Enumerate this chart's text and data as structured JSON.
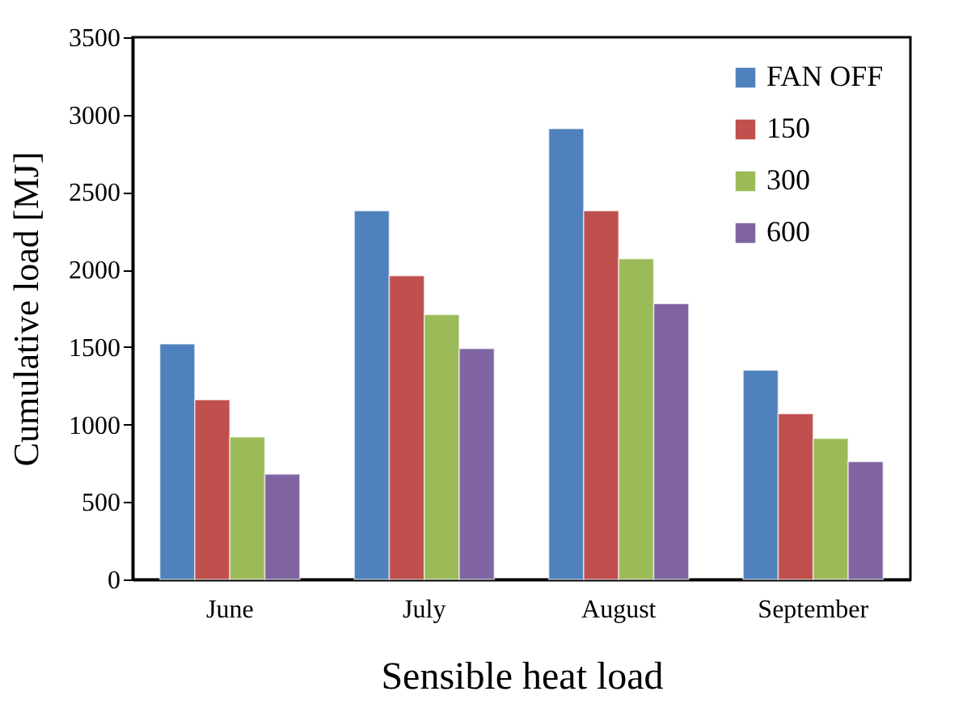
{
  "chart_data": {
    "type": "bar",
    "xlabel": "Sensible heat load",
    "ylabel": "Cumulative load [MJ]",
    "categories": [
      "June",
      "July",
      "August",
      "September"
    ],
    "series": [
      {
        "name": "FAN OFF",
        "color": "#4f81bd",
        "values": [
          1520,
          2380,
          2910,
          1350
        ]
      },
      {
        "name": "150",
        "color": "#c0504d",
        "values": [
          1160,
          1960,
          2380,
          1070
        ]
      },
      {
        "name": "300",
        "color": "#9bbb59",
        "values": [
          920,
          1710,
          2070,
          910
        ]
      },
      {
        "name": "600",
        "color": "#8064a2",
        "values": [
          680,
          1490,
          1780,
          760
        ]
      }
    ],
    "ylim": [
      0,
      3500
    ],
    "yticks": [
      0,
      500,
      1000,
      1500,
      2000,
      2500,
      3000,
      3500
    ],
    "grid": false,
    "legend": "top right"
  }
}
